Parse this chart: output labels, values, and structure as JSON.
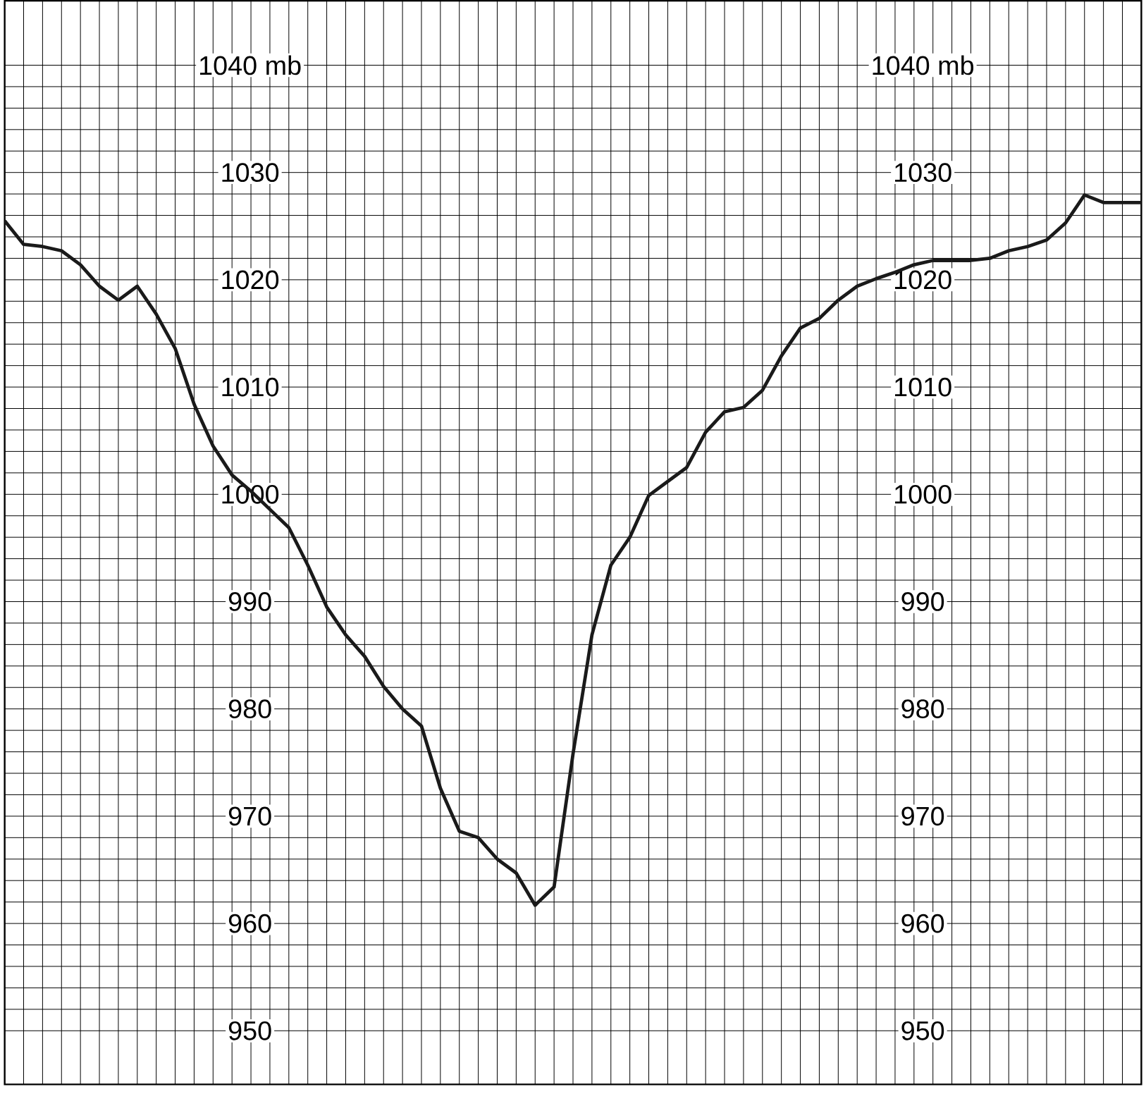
{
  "chart_data": {
    "type": "line",
    "categories": [
      null,
      null,
      null,
      null,
      null,
      null,
      null,
      null,
      null,
      null,
      null,
      null,
      null,
      null,
      null,
      null,
      null,
      null,
      null,
      null,
      null,
      null,
      null,
      null,
      null,
      null,
      null,
      null,
      null,
      null,
      null,
      null,
      null,
      null,
      null,
      null,
      null,
      null,
      null,
      null,
      null,
      null,
      null,
      null,
      null,
      null,
      null,
      null,
      null,
      null,
      null,
      null,
      null,
      null,
      null,
      null,
      null,
      null,
      null,
      null,
      null
    ],
    "values": [
      1025.5,
      1023.3,
      1023.1,
      1022.7,
      1021.4,
      1019.4,
      1018.1,
      1019.4,
      1016.8,
      1013.6,
      1008.4,
      1004.5,
      1001.8,
      1000.3,
      998.6,
      996.9,
      993.4,
      989.5,
      986.9,
      984.9,
      982.1,
      980,
      978.4,
      972.6,
      968.6,
      968,
      966,
      964.7,
      961.7,
      963.4,
      975.8,
      986.9,
      993.4,
      996,
      999.9,
      1001.2,
      1002.5,
      1005.8,
      1007.7,
      1008.1,
      1009.7,
      1012.9,
      1015.5,
      1016.4,
      1018.1,
      1019.4,
      1020.1,
      1020.7,
      1021.4,
      1021.8,
      1021.8,
      1021.8,
      1022,
      1022.7,
      1023.1,
      1023.7,
      1025.3,
      1027.9,
      1027.2,
      1027.2,
      1027.2
    ],
    "color": "#1a1a1a",
    "ylim": [
      945,
      1046
    ],
    "yticks": [
      950,
      960,
      970,
      980,
      990,
      1000,
      1010,
      1020,
      1030,
      {
        "value": 1040,
        "label": "1040 mb"
      }
    ],
    "y2lim": [
      945,
      1046
    ],
    "y2ticks": [
      950,
      960,
      970,
      980,
      990,
      1000,
      1010,
      1020,
      1030,
      {
        "value": 1040,
        "label": "1040 mb"
      }
    ],
    "grid": true,
    "marker": "none",
    "line_style": "solid"
  }
}
